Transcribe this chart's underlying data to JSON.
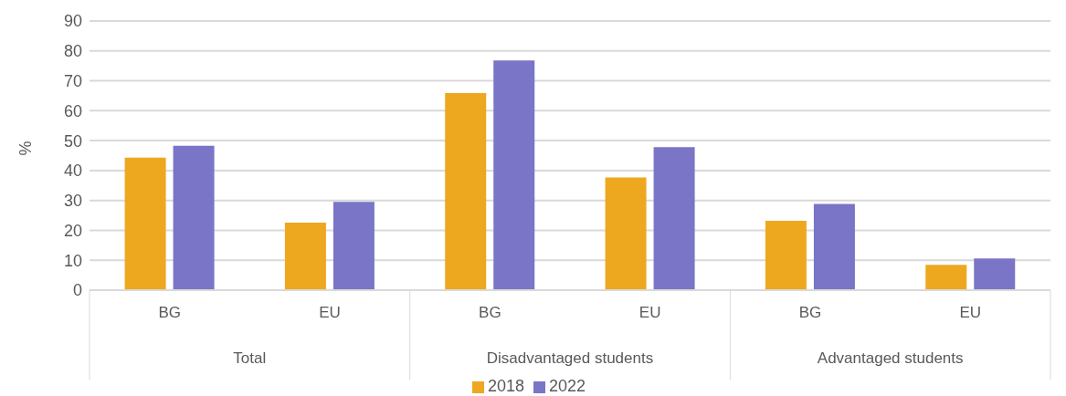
{
  "chart_data": {
    "type": "bar",
    "ylabel": "%",
    "categories": [
      "BG",
      "EU",
      "BG",
      "EU",
      "BG",
      "EU"
    ],
    "annotations": [
      "Total",
      "Disadvantaged students",
      "Advantaged students"
    ],
    "series": [
      {
        "name": "2018",
        "color": "#eda81f",
        "values": [
          44.3,
          22.6,
          65.9,
          37.7,
          23.2,
          8.5
        ]
      },
      {
        "name": "2022",
        "color": "#7a75c6",
        "values": [
          48.3,
          29.5,
          76.8,
          47.8,
          28.8,
          10.6
        ]
      }
    ],
    "ylim": [
      0,
      90
    ],
    "yticks": [
      0,
      10,
      20,
      30,
      40,
      50,
      60,
      70,
      80,
      90
    ],
    "grid": "y",
    "legend": "bottom"
  }
}
